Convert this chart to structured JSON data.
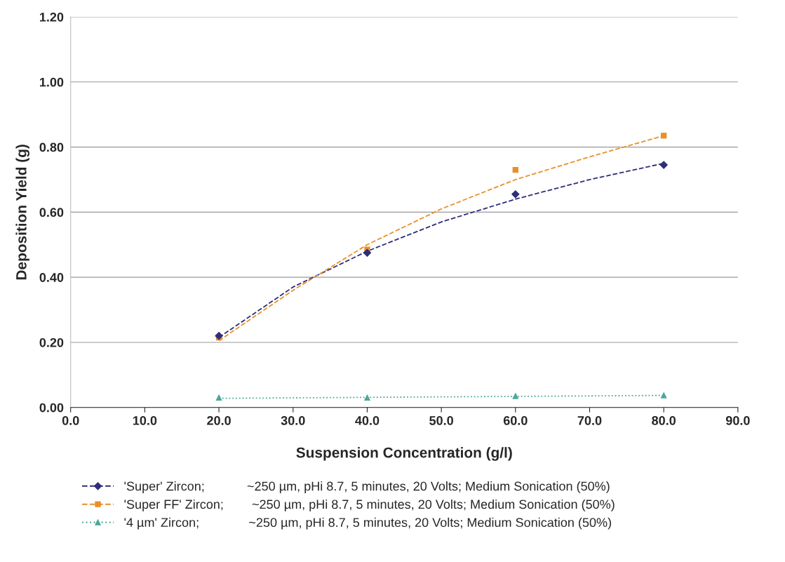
{
  "chart_data": {
    "type": "line",
    "xlabel": "Suspension Concentration (g/l)",
    "ylabel": "Deposition Yield (g)",
    "xlim": [
      0,
      90
    ],
    "xticks": [
      {
        "value": 0,
        "label": "0.0"
      },
      {
        "value": 10,
        "label": "10.0"
      },
      {
        "value": 20,
        "label": "20.0"
      },
      {
        "value": 30,
        "label": "30.0"
      },
      {
        "value": 40,
        "label": "40.0"
      },
      {
        "value": 50,
        "label": "50.0"
      },
      {
        "value": 60,
        "label": "60.0"
      },
      {
        "value": 70,
        "label": "70.0"
      },
      {
        "value": 80,
        "label": "80.0"
      },
      {
        "value": 90,
        "label": "90.0"
      }
    ],
    "ylim": [
      0,
      1.2
    ],
    "yticks": [
      {
        "value": 0,
        "label": "0.00"
      },
      {
        "value": 0.2,
        "label": "0.20"
      },
      {
        "value": 0.4,
        "label": "0.40"
      },
      {
        "value": 0.6,
        "label": "0.60"
      },
      {
        "value": 0.8,
        "label": "0.80"
      },
      {
        "value": 1.0,
        "label": "1.00"
      },
      {
        "value": 1.2,
        "label": "1.20"
      }
    ],
    "grid": "y",
    "legend": "bottom",
    "x": [
      20,
      40,
      60,
      80
    ],
    "series": [
      {
        "color": "#2e2e7a",
        "marker": "none",
        "line_style": "dashed",
        "x": [
          20,
          30,
          40,
          50,
          60,
          70,
          80
        ],
        "values": [
          0.215,
          0.37,
          0.48,
          0.57,
          0.64,
          0.7,
          0.75
        ]
      },
      {
        "color": "#e8902a",
        "marker": "none",
        "line_style": "dashed",
        "x": [
          20,
          30,
          40,
          50,
          60,
          70,
          80
        ],
        "values": [
          0.205,
          0.36,
          0.5,
          0.61,
          0.7,
          0.77,
          0.835
        ]
      },
      {
        "color": "#4aa89a",
        "marker": "none",
        "line_style": "dotted",
        "x": [
          20,
          40,
          60,
          80
        ],
        "values": [
          0.028,
          0.031,
          0.034,
          0.037
        ]
      },
      {
        "name": "'Super' Zircon;            ~250 µm, pHi 8.7, 5 minutes, 20 Volts; Medium Sonication (50%)",
        "type": "scatter",
        "color": "#2e2e7a",
        "marker": "diamond",
        "line_style": "dashed",
        "values": [
          0.22,
          0.475,
          0.655,
          0.745
        ]
      },
      {
        "name": "'Super FF' Zircon;        ~250 µm, pHi 8.7, 5 minutes, 20 Volts; Medium Sonication (50%)",
        "type": "scatter",
        "color": "#e8902a",
        "marker": "square",
        "line_style": "dashed",
        "values": [
          0.215,
          0.485,
          0.73,
          0.835
        ]
      },
      {
        "name": "'4 µm' Zircon;              ~250 µm, pHi 8.7, 5 minutes, 20 Volts; Medium Sonication (50%)",
        "type": "scatter",
        "color": "#4aa89a",
        "marker": "triangle",
        "line_style": "dotted",
        "values": [
          0.03,
          0.03,
          0.035,
          0.037
        ]
      }
    ]
  }
}
